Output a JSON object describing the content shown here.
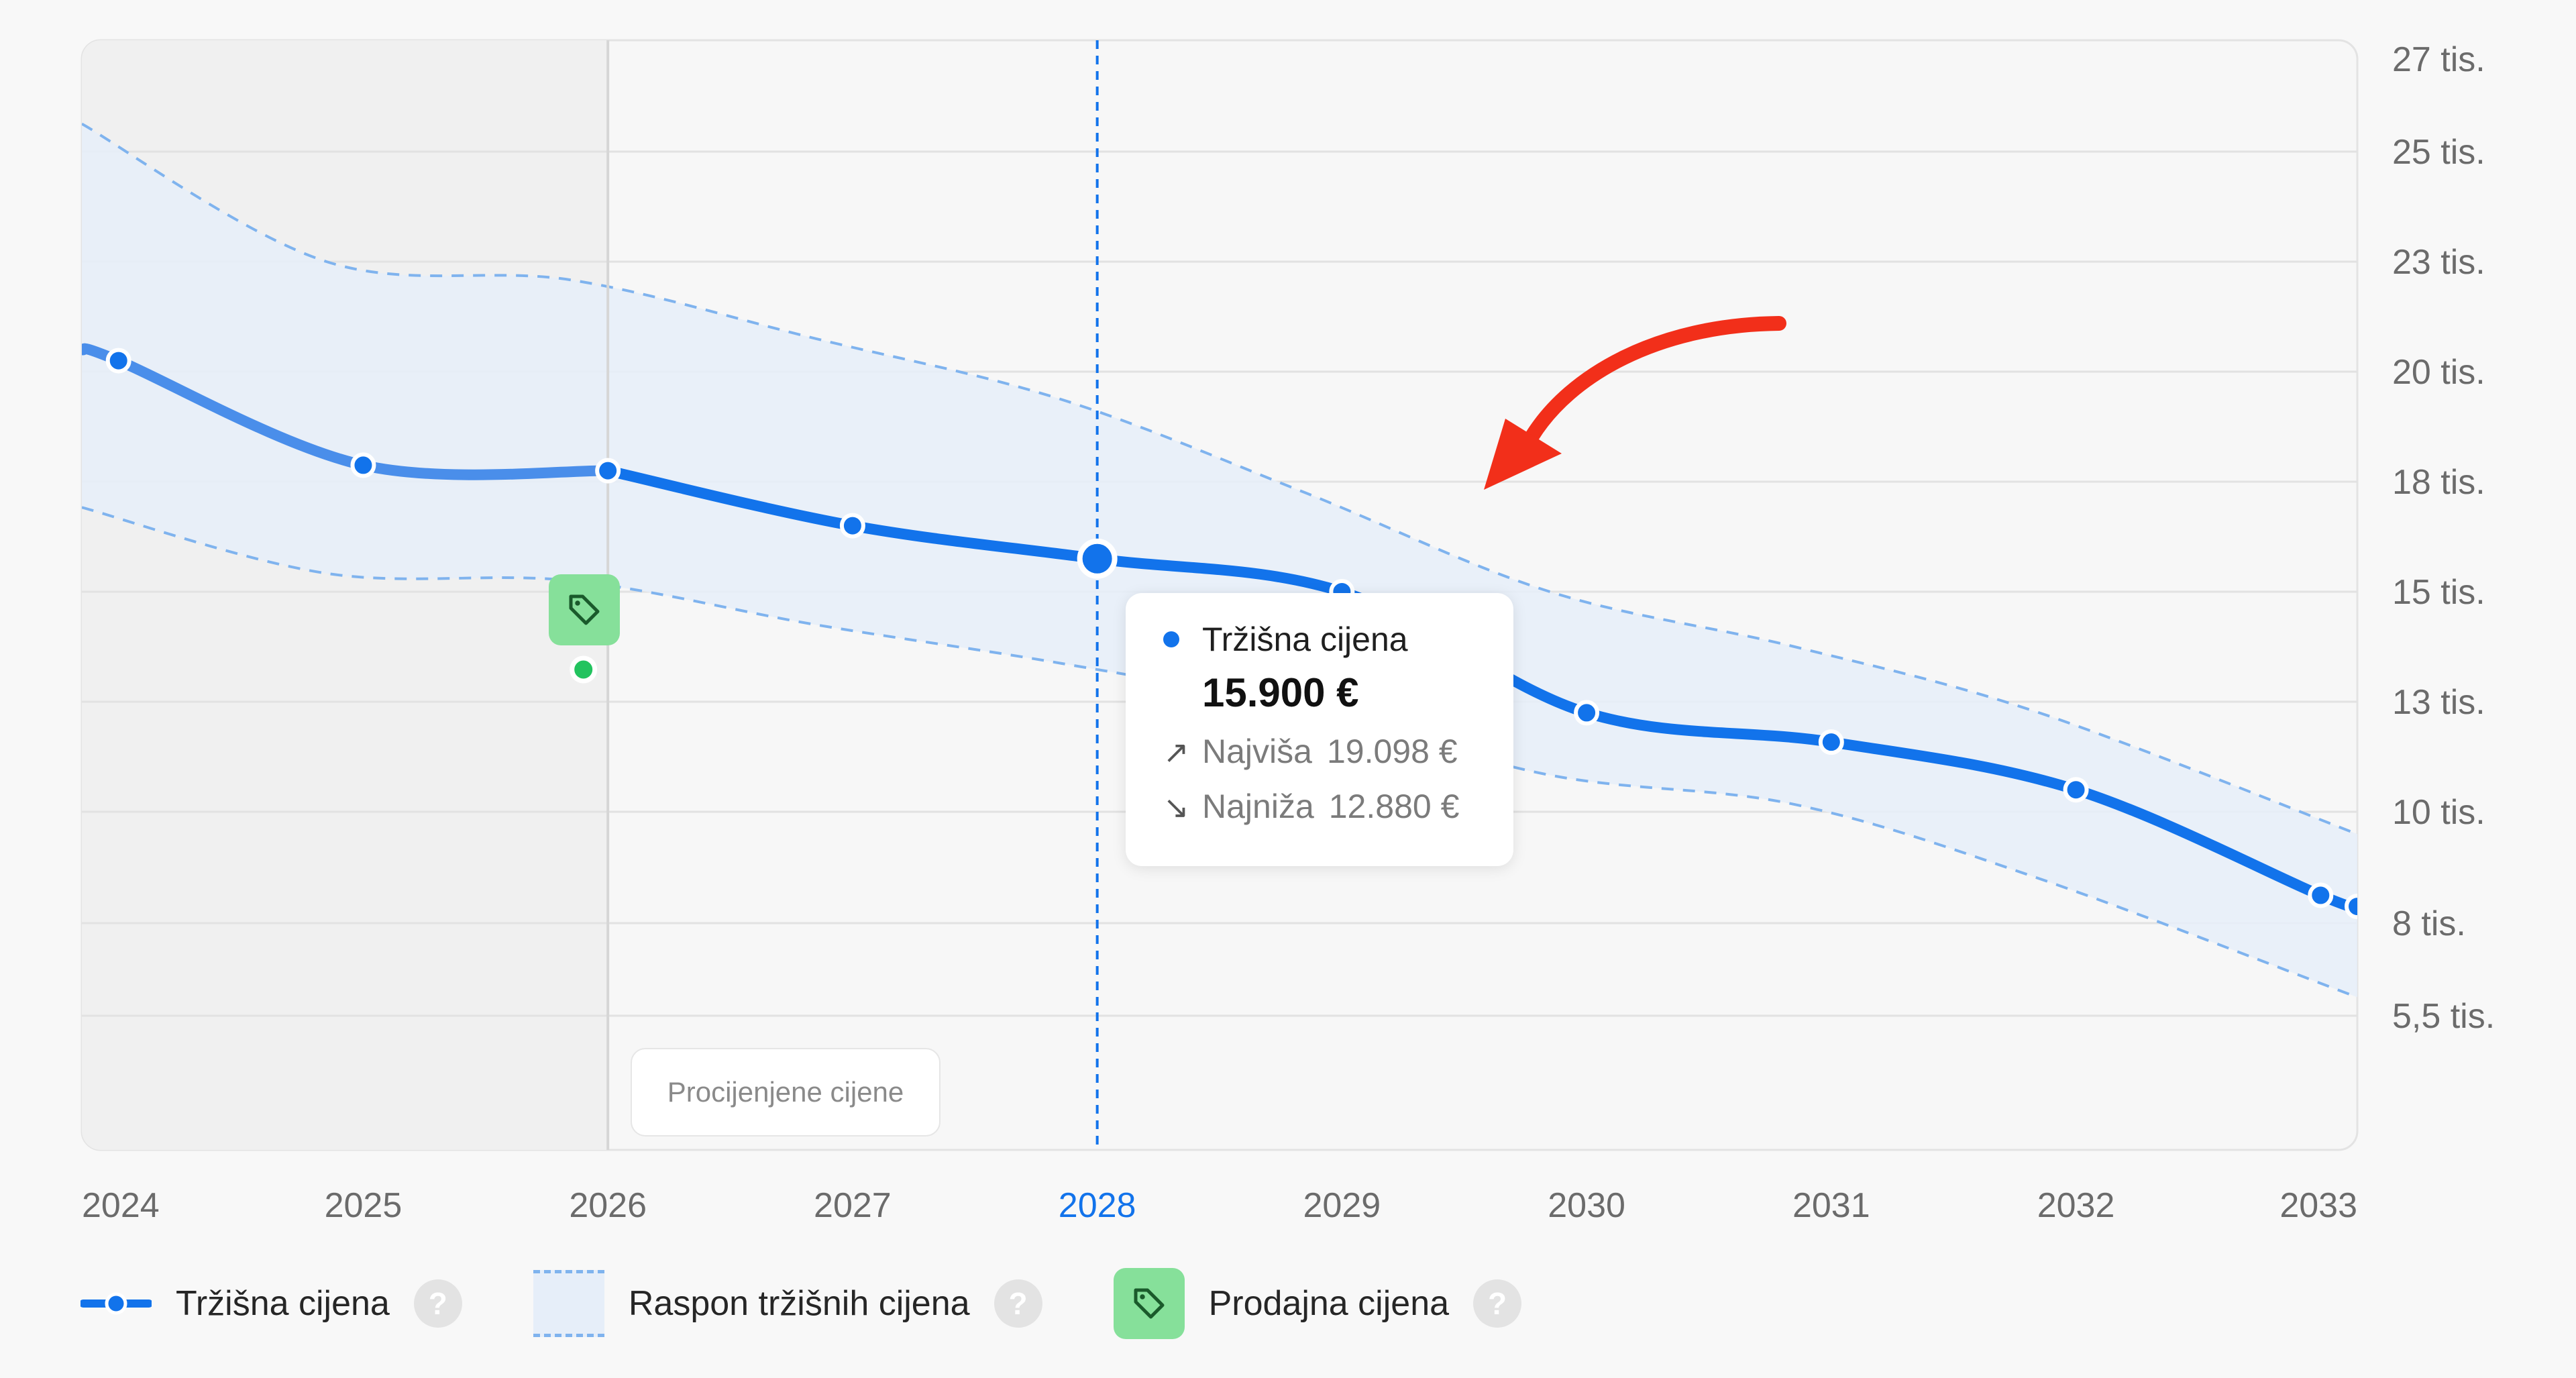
{
  "chart_data": {
    "type": "line",
    "x": [
      "2024",
      "2025",
      "2026",
      "2027",
      "2028",
      "2029",
      "2030",
      "2031",
      "2032",
      "2033"
    ],
    "x_numeric": [
      2024.15,
      2025.15,
      2026.15,
      2027.15,
      2028.15,
      2029.15,
      2030.15,
      2031.15,
      2032.15,
      2033.15
    ],
    "y_tick_labels": [
      "27 tis.",
      "25 tis.",
      "23 tis.",
      "20 tis.",
      "18 tis.",
      "15 tis.",
      "13 tis.",
      "10 tis.",
      "8 tis.",
      "5,5 tis."
    ],
    "y_tick_values": [
      27000,
      25000,
      23000,
      20000,
      18000,
      15000,
      13000,
      10000,
      8000,
      5500
    ],
    "series": [
      {
        "name": "Tržišna cijena",
        "style": "solid",
        "color": "#1273eb",
        "x": [
          2024,
          2024.15,
          2025.15,
          2026.15,
          2027.15,
          2028.15,
          2029.15,
          2030.15,
          2031.15,
          2032.15,
          2033.15,
          2033.3
        ],
        "values": [
          20600,
          20300,
          18300,
          18200,
          16800,
          15900,
          15000,
          12700,
          11900,
          10600,
          8500,
          8300
        ]
      },
      {
        "name": "Raspon tržišnih cijena",
        "type": "band",
        "color": "#7fb3ee",
        "fill": "#e6eef9",
        "x": [
          2024,
          2025,
          2026,
          2027,
          2028,
          2029,
          2030,
          2031,
          2032,
          2033.3
        ],
        "upper": [
          25600,
          23000,
          22500,
          20900,
          19500,
          17700,
          15000,
          14000,
          12700,
          9600
        ],
        "lower": [
          17300,
          15500,
          15300,
          14400,
          13700,
          12800,
          11000,
          10200,
          8800,
          6000
        ]
      }
    ],
    "historical_until": 2026.15,
    "highlight": {
      "x": 2028.15,
      "label": "2028"
    },
    "sale_point": {
      "x": 2026.05,
      "value": 14200
    },
    "tooltip": {
      "series_name": "Tržišna cijena",
      "price": "15.900 €",
      "high_label": "Najviša",
      "high_value": "19.098 €",
      "low_label": "Najniža",
      "low_value": "12.880 €"
    },
    "estimate_label": "Procijenjene cijene",
    "legend": [
      {
        "label": "Tržišna cijena",
        "icon": "line-dot"
      },
      {
        "label": "Raspon tržišnih cijena",
        "icon": "dashed-band"
      },
      {
        "label": "Prodajna cijena",
        "icon": "tag-icon"
      }
    ],
    "help_symbol": "?",
    "colors": {
      "line": "#1273eb",
      "band_fill": "#e6eef9",
      "band_stroke": "#7fb3ee",
      "sale": "#86e09a",
      "sale_dot": "#22c35e",
      "highlight_label": "#1273eb",
      "historical_bg": "#f0f0f0"
    }
  }
}
